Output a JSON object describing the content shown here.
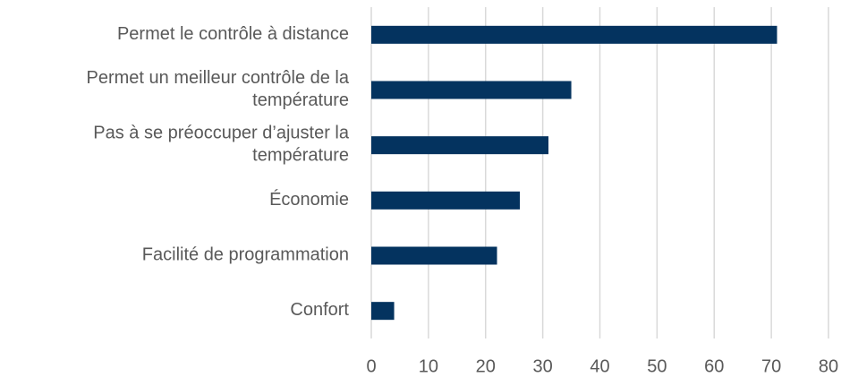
{
  "chart_data": {
    "type": "barh",
    "categories": [
      "Permet le contrôle à distance",
      "Permet un meilleur contrôle de la température",
      "Pas à se préoccuper d’ajuster la température",
      "Économie",
      "Facilité de programmation",
      "Confort"
    ],
    "values": [
      71,
      35,
      31,
      26,
      22,
      4
    ],
    "color": "#04335f",
    "xlim": [
      0,
      80
    ],
    "xticks": [
      0,
      10,
      20,
      30,
      40,
      50,
      60,
      70,
      80
    ],
    "grid": true
  }
}
